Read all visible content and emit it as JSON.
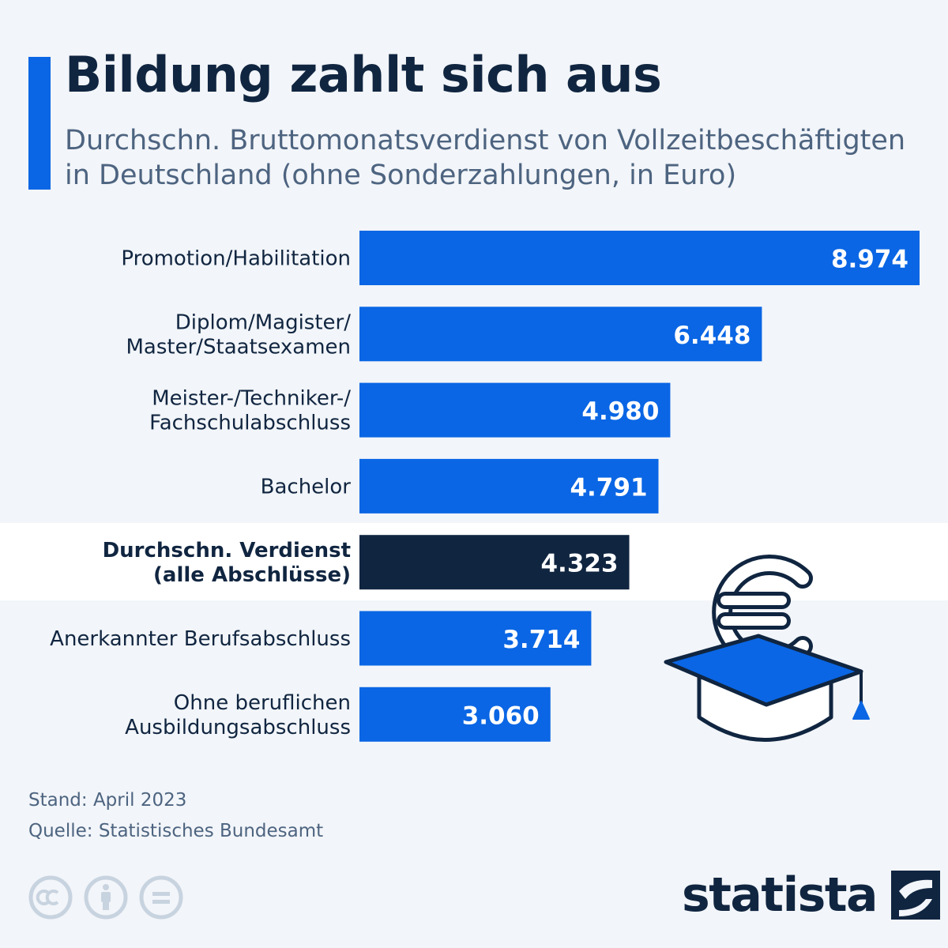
{
  "header": {
    "title": "Bildung zahlt sich aus",
    "subtitle": "Durchschn. Bruttomonatsverdienst von Vollzeitbeschäftigten in Deutschland (ohne Sonderzahlungen, in Euro)"
  },
  "chart_data": {
    "type": "bar",
    "orientation": "horizontal",
    "title": "Bildung zahlt sich aus",
    "subtitle": "Durchschn. Bruttomonatsverdienst von Vollzeitbeschäftigten in Deutschland (ohne Sonderzahlungen, in Euro)",
    "xlim": [
      0,
      8974
    ],
    "grid": false,
    "legend": "none",
    "colors": {
      "bar": "#0a66e4",
      "highlight_bar": "#102540",
      "value_text": "#ffffff"
    },
    "bars": [
      {
        "label_lines": [
          "Promotion/Habilitation"
        ],
        "value": 8974,
        "value_label": "8.974",
        "highlight": false
      },
      {
        "label_lines": [
          "Diplom/Magister/",
          "Master/Staatsexamen"
        ],
        "value": 6448,
        "value_label": "6.448",
        "highlight": false
      },
      {
        "label_lines": [
          "Meister-/Techniker-/",
          "Fachschulabschluss"
        ],
        "value": 4980,
        "value_label": "4.980",
        "highlight": false
      },
      {
        "label_lines": [
          "Bachelor"
        ],
        "value": 4791,
        "value_label": "4.791",
        "highlight": false
      },
      {
        "label_lines": [
          "Durchschn. Verdienst",
          "(alle Abschlüsse)"
        ],
        "value": 4323,
        "value_label": "4.323",
        "highlight": true
      },
      {
        "label_lines": [
          "Anerkannter Berufsabschluss"
        ],
        "value": 3714,
        "value_label": "3.714",
        "highlight": false
      },
      {
        "label_lines": [
          "Ohne beruflichen",
          "Ausbildungsabschluss"
        ],
        "value": 3060,
        "value_label": "3.060",
        "highlight": false
      }
    ]
  },
  "illustration": {
    "icon": "graduation-cap-euro-icon"
  },
  "footer": {
    "stand": "Stand: April 2023",
    "quelle": "Quelle: Statistisches Bundesamt",
    "license_icons": [
      "cc-icon",
      "by-icon",
      "nd-icon"
    ]
  },
  "brand": {
    "name": "statista",
    "icon": "statista-logo-icon"
  }
}
